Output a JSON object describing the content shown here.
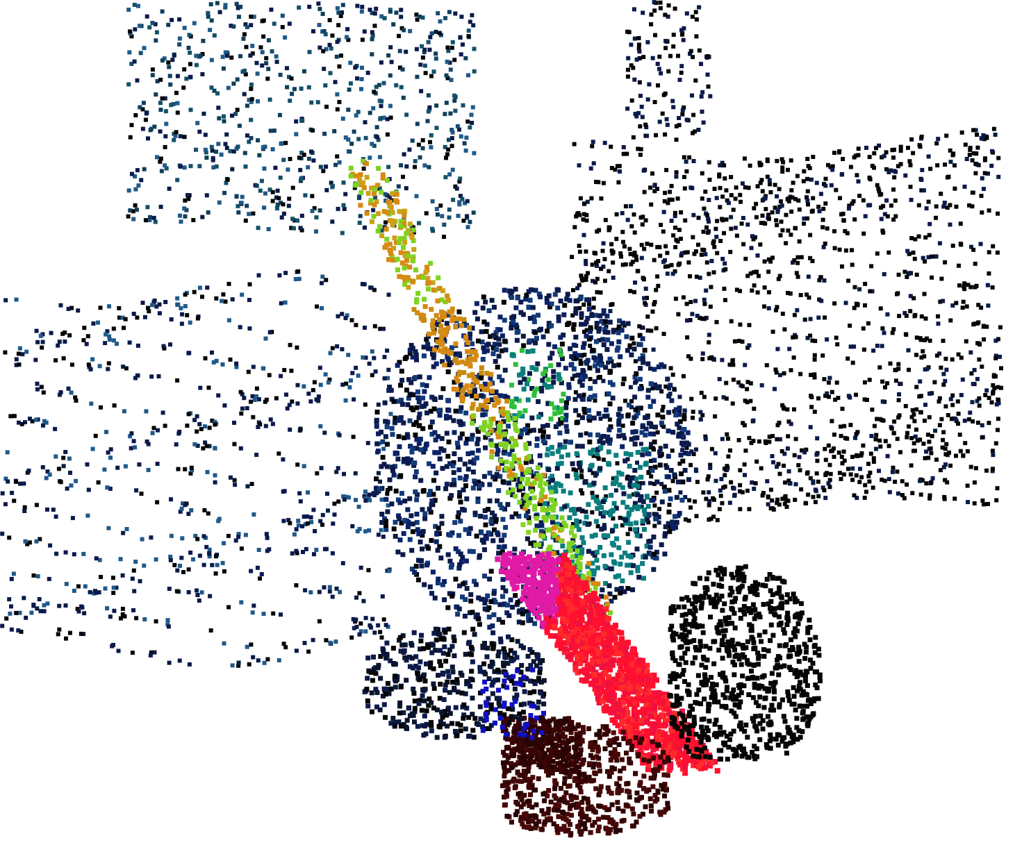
{
  "scene": {
    "background": "#ffffff",
    "render_mode": "point-cloud",
    "palette": {
      "far_blue": "#1f5a8a",
      "dark_navy": "#0b1a4a",
      "black": "#050505",
      "teal": "#0a7e7e",
      "lime": "#7ed321",
      "green": "#2fbf3a",
      "orange": "#d68a12",
      "red": "#ff1030",
      "magenta": "#e01aa6",
      "maroon": "#3a0505",
      "blue": "#1010c8"
    }
  }
}
